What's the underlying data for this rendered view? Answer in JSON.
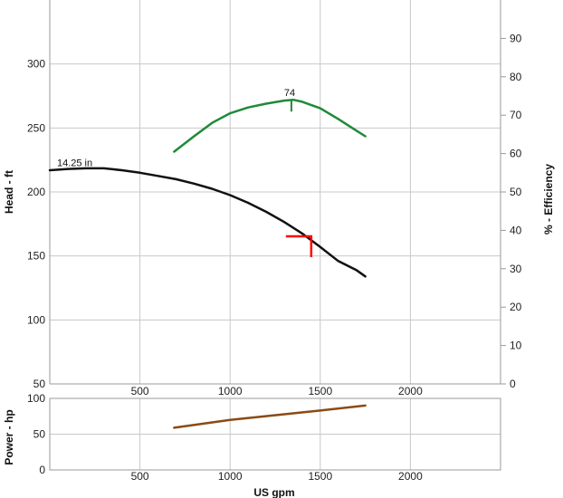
{
  "chart_data": [
    {
      "type": "line",
      "xlabel": "US gpm",
      "ylabel": "Head - ft",
      "y2label": "% - Efficiency",
      "xlim": [
        0,
        2500
      ],
      "ylim": [
        50,
        350
      ],
      "y2lim": [
        0,
        100
      ],
      "x_ticks": [
        500,
        1000,
        1500,
        2000
      ],
      "y_ticks": [
        50,
        100,
        150,
        200,
        250,
        300
      ],
      "y2_ticks": [
        0,
        10,
        20,
        30,
        40,
        50,
        60,
        70,
        80,
        90
      ],
      "grid": true,
      "series": [
        {
          "name": "14.25 in",
          "axis": "head",
          "color": "#111111",
          "x": [
            0,
            100,
            200,
            300,
            400,
            500,
            600,
            700,
            800,
            900,
            1000,
            1100,
            1200,
            1300,
            1400,
            1500,
            1600,
            1700,
            1750
          ],
          "y": [
            217,
            218,
            218.5,
            218.5,
            217,
            215,
            212.5,
            210,
            206.5,
            202.5,
            197.5,
            191.5,
            184.5,
            176.5,
            167.5,
            157,
            146,
            139,
            134
          ]
        },
        {
          "axis": "efficiency",
          "color": "#1f8a3a",
          "x": [
            690,
            800,
            900,
            1000,
            1100,
            1200,
            1300,
            1350,
            1400,
            1500,
            1600,
            1700,
            1750
          ],
          "y": [
            60.5,
            64.5,
            68,
            70.5,
            72,
            73,
            73.8,
            74,
            73.5,
            71.8,
            69,
            66,
            64.5
          ]
        }
      ],
      "annotations": [
        {
          "text": "14.25 in",
          "x": 40,
          "y": 220
        },
        {
          "text": "74",
          "x": 1330,
          "y": 74
        }
      ],
      "operating_point": {
        "x": 1450,
        "y": 166,
        "color": "#ff0000"
      }
    },
    {
      "type": "line",
      "xlabel": "US gpm",
      "ylabel": "Power - hp",
      "xlim": [
        0,
        2500
      ],
      "ylim": [
        0,
        100
      ],
      "x_ticks": [
        500,
        1000,
        1500,
        2000
      ],
      "y_ticks": [
        0,
        50,
        100
      ],
      "grid": true,
      "series": [
        {
          "color": "#8a4b14",
          "x": [
            690,
            1000,
            1500,
            1750
          ],
          "y": [
            59,
            70,
            83,
            90
          ]
        }
      ]
    }
  ]
}
